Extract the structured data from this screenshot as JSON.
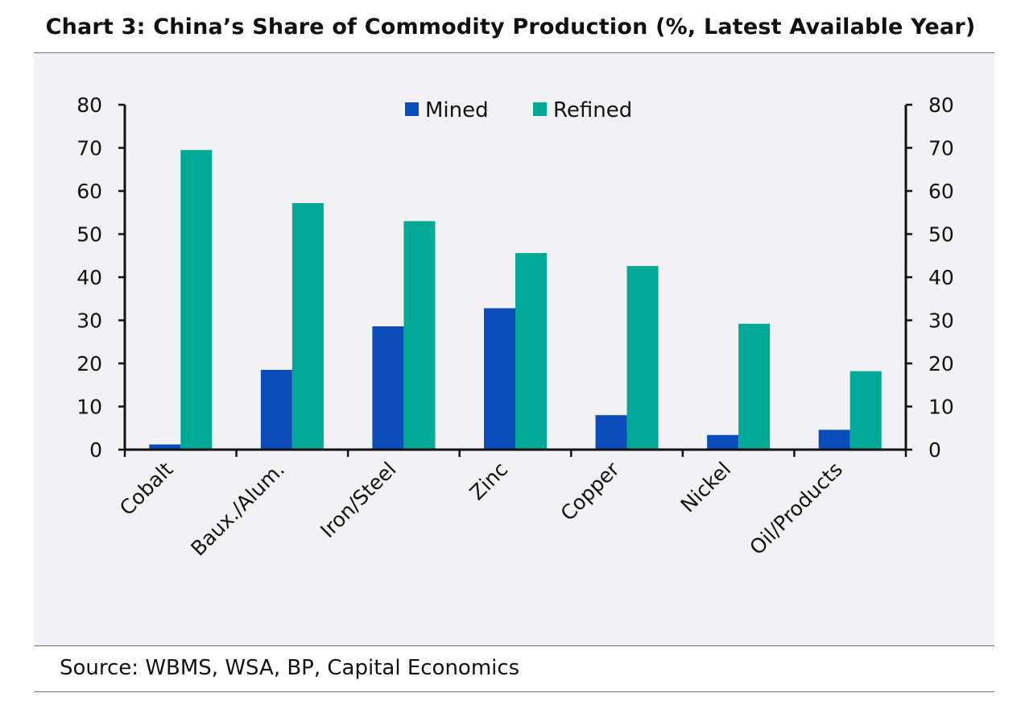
{
  "title": "Chart 3: China’s Share of Commodity Production (%, Latest Available Year)",
  "source": "Source: WBMS, WSA, BP, Capital Economics",
  "colors": {
    "mined": "#0a4cba",
    "refined": "#00a895",
    "panel": "#f2f2f4"
  },
  "chart_data": {
    "type": "bar",
    "categories": [
      "Cobalt",
      "Baux./Alum.",
      "Iron/Steel",
      "Zinc",
      "Copper",
      "Nickel",
      "Oil/Products"
    ],
    "series": [
      {
        "name": "Mined",
        "values": [
          1.2,
          18.5,
          28.6,
          32.8,
          8.0,
          3.4,
          4.6
        ]
      },
      {
        "name": "Refined",
        "values": [
          69.5,
          57.2,
          53.0,
          45.6,
          42.6,
          29.2,
          18.2
        ]
      }
    ],
    "ylim": [
      0,
      80
    ],
    "yticks": [
      0,
      10,
      20,
      30,
      40,
      50,
      60,
      70,
      80
    ],
    "secondary_y_axis": true,
    "legend_position": "top-center",
    "grid": false
  }
}
